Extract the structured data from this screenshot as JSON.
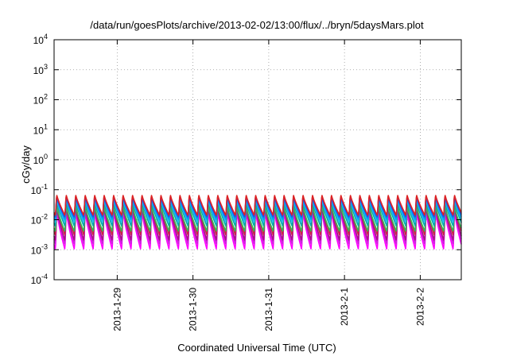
{
  "chart_data": {
    "type": "line",
    "title": "/data/run/goesPlots/archive/2013-02-02/13:00/flux/../bryn/5daysMars.plot",
    "xlabel": "Coordinated Universal Time (UTC)",
    "ylabel": "cGy/day",
    "y_scale": "log",
    "ylim": [
      0.0001,
      10000
    ],
    "y_ticks": [
      {
        "value": 0.0001,
        "base": "10",
        "exp": "-4"
      },
      {
        "value": 0.001,
        "base": "10",
        "exp": "-3"
      },
      {
        "value": 0.01,
        "base": "10",
        "exp": "-2"
      },
      {
        "value": 0.1,
        "base": "10",
        "exp": "-1"
      },
      {
        "value": 1,
        "base": "10",
        "exp": "0"
      },
      {
        "value": 10,
        "base": "10",
        "exp": "1"
      },
      {
        "value": 100,
        "base": "10",
        "exp": "2"
      },
      {
        "value": 1000,
        "base": "10",
        "exp": "3"
      },
      {
        "value": 10000,
        "base": "10",
        "exp": "4"
      }
    ],
    "xlim": [
      "2013-01-28T04:00",
      "2013-02-02T13:00"
    ],
    "x_ticks": [
      "2013-1-29",
      "2013-1-30",
      "2013-1-31",
      "2013-2-1",
      "2013-2-2"
    ],
    "grid": true,
    "sawtooth_period_hours": 3,
    "series": [
      {
        "color": "#ff00ff",
        "peak": 0.02,
        "trough": 0.001
      },
      {
        "color": "#cc22dd",
        "peak": 0.025,
        "trough": 0.0015
      },
      {
        "color": "#aa1188",
        "peak": 0.028,
        "trough": 0.002
      },
      {
        "color": "#cc2244",
        "peak": 0.035,
        "trough": 0.003
      },
      {
        "color": "#33bb55",
        "peak": 0.03,
        "trough": 0.004
      },
      {
        "color": "#00aaaa",
        "peak": 0.045,
        "trough": 0.006
      },
      {
        "color": "#22bbee",
        "peak": 0.05,
        "trough": 0.008
      },
      {
        "color": "#0099ff",
        "peak": 0.055,
        "trough": 0.01
      },
      {
        "color": "#2255dd",
        "peak": 0.06,
        "trough": 0.012
      },
      {
        "color": "#5533cc",
        "peak": 0.065,
        "trough": 0.013
      },
      {
        "color": "#dd2222",
        "peak": 0.07,
        "trough": 0.014
      }
    ]
  }
}
